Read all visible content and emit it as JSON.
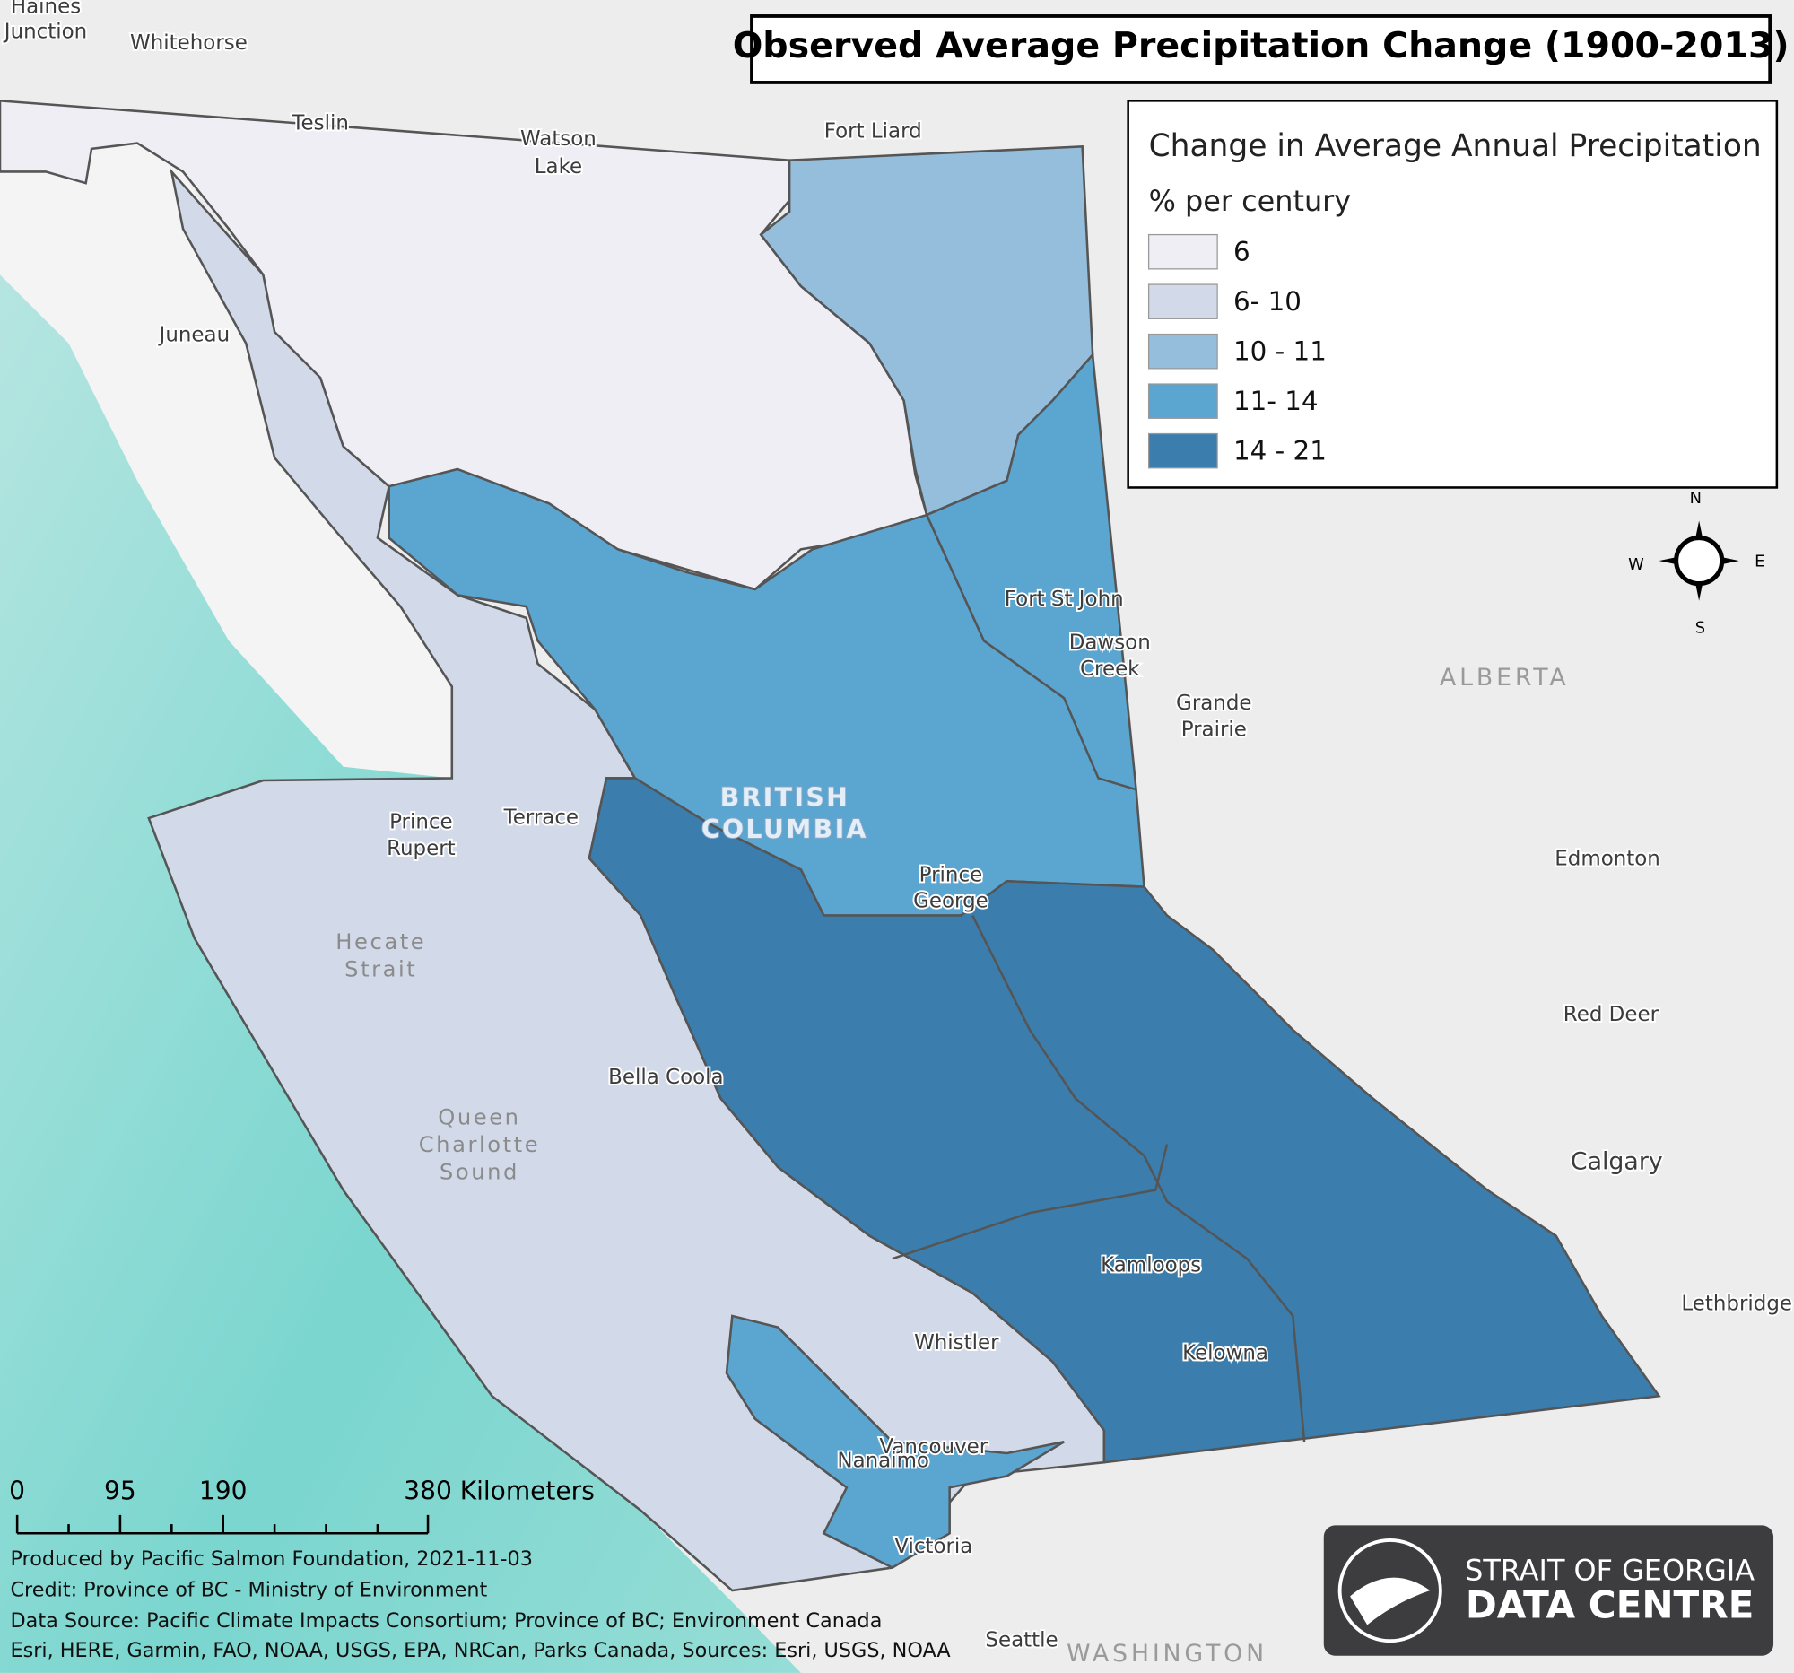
{
  "title": "Observed Average Precipitation Change (1900-2013)",
  "legend": {
    "title": "Change in Average Annual Precipitation",
    "subtitle": "% per century",
    "items": [
      {
        "label": "6",
        "color": "#efeef4"
      },
      {
        "label": "6- 10",
        "color": "#d2dae9"
      },
      {
        "label": "10 - 11",
        "color": "#94bedc"
      },
      {
        "label": "11- 14",
        "color": "#5ba5d1"
      },
      {
        "label": "14 - 21",
        "color": "#3b7ead"
      }
    ]
  },
  "compass": {
    "n": "N",
    "s": "S",
    "e": "E",
    "w": "W"
  },
  "places": [
    [
      "Haines",
      "Junction"
    ],
    [
      "Whitehorse"
    ],
    [
      "Teslin"
    ],
    [
      "Watson",
      "Lake"
    ],
    [
      "Fort Liard"
    ],
    [
      "Juneau"
    ],
    [
      "Fort St John"
    ],
    [
      "Dawson",
      "Creek"
    ],
    [
      "Grande",
      "Prairie"
    ],
    [
      "ALBERTA"
    ],
    [
      "BRITISH",
      "COLUMBIA"
    ],
    [
      "Prince",
      "Rupert"
    ],
    [
      "Terrace"
    ],
    [
      "Prince",
      "George"
    ],
    [
      "Edmonton"
    ],
    [
      "Hecate",
      "Strait"
    ],
    [
      "Red Deer"
    ],
    [
      "Bella Coola"
    ],
    [
      "Queen",
      "Charlotte",
      "Sound"
    ],
    [
      "Calgary"
    ],
    [
      "Kamloops"
    ],
    [
      "Lethbridge"
    ],
    [
      "Whistler"
    ],
    [
      "Kelowna"
    ],
    [
      "Vancouver"
    ],
    [
      "Nanaimo"
    ],
    [
      "Victoria"
    ],
    [
      "Seattle"
    ],
    [
      "WASHINGTON"
    ]
  ],
  "scale": {
    "labels": [
      "0",
      "95",
      "190",
      "380 Kilometers"
    ]
  },
  "credits": [
    "Produced by Pacific Salmon Foundation, 2021-11-03",
    "Credit: Province of BC - Ministry of Environment",
    "Data Source: Pacific Climate Impacts Consortium; Province of BC; Environment Canada",
    "Esri, HERE, Garmin, FAO, NOAA, USGS, EPA, NRCan, Parks Canada, Sources: Esri, USGS, NOAA"
  ],
  "logo": {
    "line1": "STRAIT OF GEORGIA",
    "line2": "DATA CENTRE"
  }
}
